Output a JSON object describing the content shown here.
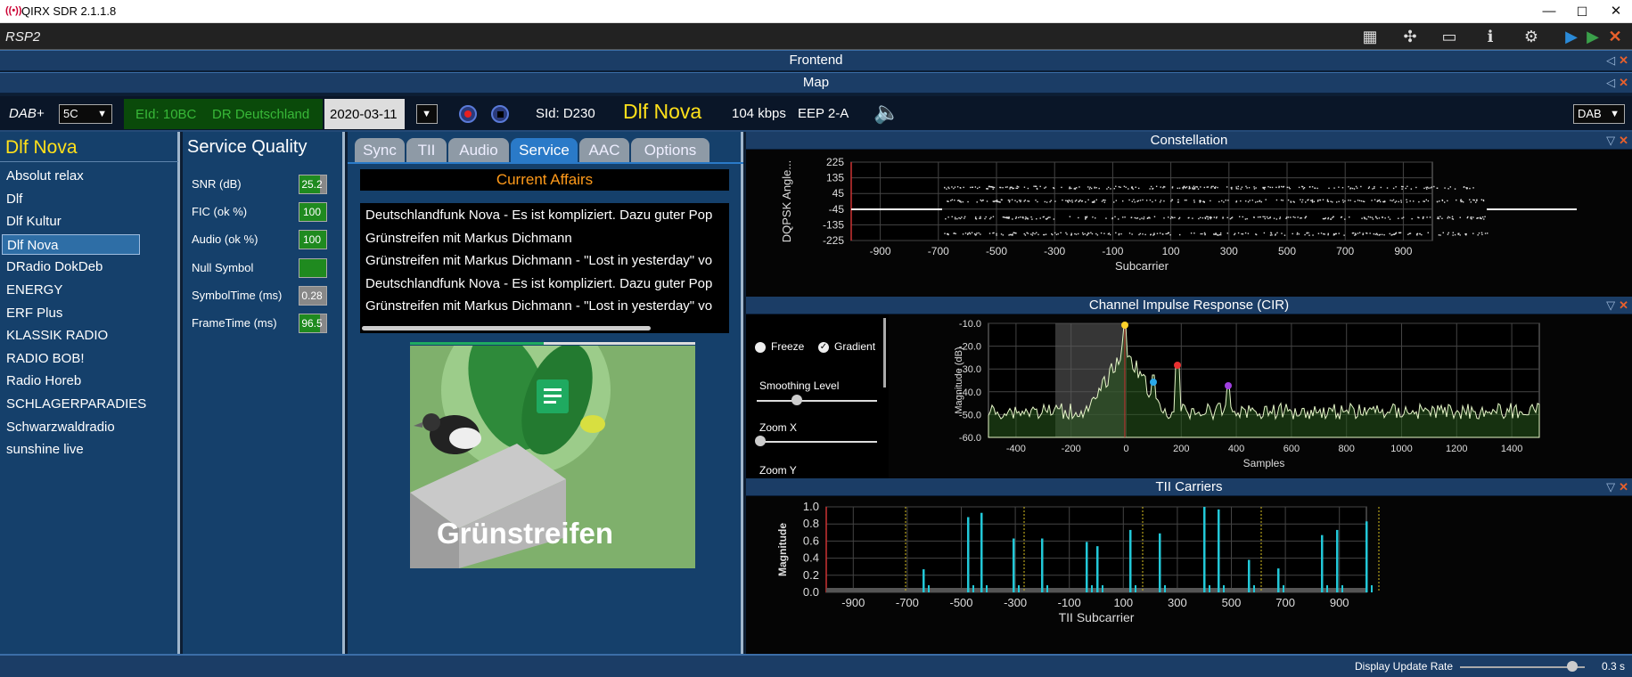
{
  "window": {
    "title": "QIRX SDR 2.1.1.8",
    "minimize": "—",
    "maximize": "☐",
    "close": "✕"
  },
  "toolbar": {
    "device": "RSP2"
  },
  "panels": {
    "frontend": "Frontend",
    "map": "Map"
  },
  "status": {
    "mode": "DAB+",
    "channel": "5C",
    "eid": "EId: 10BC",
    "ensemble": "DR Deutschland",
    "date": "2020-03-11",
    "sid": "SId: D230",
    "service": "Dlf Nova",
    "bitrate": "104 kbps",
    "protection": "EEP 2-A",
    "dab_select": "DAB"
  },
  "channels": {
    "header": "Dlf Nova",
    "items": [
      "Absolut relax",
      "Dlf",
      "Dlf Kultur",
      "Dlf Nova",
      "DRadio DokDeb",
      "ENERGY",
      "ERF Plus",
      "KLASSIK RADIO",
      "RADIO BOB!",
      "Radio Horeb",
      "SCHLAGERPARADIES",
      "Schwarzwaldradio",
      "sunshine live"
    ],
    "selected_index": 3
  },
  "service_quality": {
    "header": "Service Quality",
    "items": [
      {
        "label": "SNR (dB)",
        "value": "25.2",
        "fill": 0.75
      },
      {
        "label": "FIC (ok %)",
        "value": "100",
        "fill": 1.0
      },
      {
        "label": "Audio (ok %)",
        "value": "100",
        "fill": 1.0
      },
      {
        "label": "Null Symbol",
        "value": "",
        "fill": 1.0
      },
      {
        "label": "SymbolTime (ms)",
        "value": "0.28",
        "fill": 0.0
      },
      {
        "label": "FrameTime (ms)",
        "value": "96.5",
        "fill": 0.75
      }
    ]
  },
  "tabs": [
    "Sync",
    "TII",
    "Audio",
    "Service",
    "AAC",
    "Options"
  ],
  "active_tab": "Service",
  "service": {
    "category": "Current Affairs",
    "dls": [
      "Deutschlandfunk Nova - Es ist kompliziert. Dazu guter Pop",
      "Grünstreifen mit Markus Dichmann",
      "Grünstreifen mit Markus Dichmann - \"Lost in yesterday\" vo",
      "Deutschlandfunk Nova - Es ist kompliziert. Dazu guter Pop",
      "Grünstreifen mit Markus Dichmann - \"Lost in yesterday\" vo"
    ],
    "artwork_text": "Grünstreifen"
  },
  "constellation": {
    "title": "Constellation",
    "ylabel": "DQPSK Angle...",
    "xlabel": "Subcarrier",
    "yticks": [
      "225",
      "135",
      "45",
      "-45",
      "-135",
      "-225"
    ],
    "xticks": [
      "-900",
      "-700",
      "-500",
      "-300",
      "-100",
      "100",
      "300",
      "500",
      "700",
      "900"
    ]
  },
  "cir": {
    "title": "Channel Impulse Response (CIR)",
    "freeze": "Freeze",
    "gradient": "Gradient",
    "smoothing": "Smoothing Level",
    "zoomx": "Zoom X",
    "zoomy": "Zoom Y",
    "ylabel": "Magnitude (dB)",
    "xlabel": "Samples",
    "yticks": [
      "-10.0",
      "-20.0",
      "-30.0",
      "-40.0",
      "-50.0",
      "-60.0"
    ],
    "xticks": [
      "-400",
      "-200",
      "0",
      "200",
      "400",
      "600",
      "800",
      "1000",
      "1200",
      "1400"
    ]
  },
  "tii": {
    "title": "TII Carriers",
    "ylabel": "Magnitude",
    "xlabel": "TII Subcarrier",
    "yticks": [
      "1.0",
      "0.8",
      "0.6",
      "0.4",
      "0.2",
      "0.0"
    ],
    "xticks": [
      "-900",
      "-700",
      "-500",
      "-300",
      "-100",
      "100",
      "300",
      "500",
      "700",
      "900"
    ]
  },
  "bottom": {
    "label": "Display Update Rate",
    "value": "0.3 s"
  },
  "colors": {
    "accent_blue": "#2a7ac8",
    "yellow": "#ffe01a",
    "orange": "#ff9a1a",
    "close": "#e8602c"
  }
}
